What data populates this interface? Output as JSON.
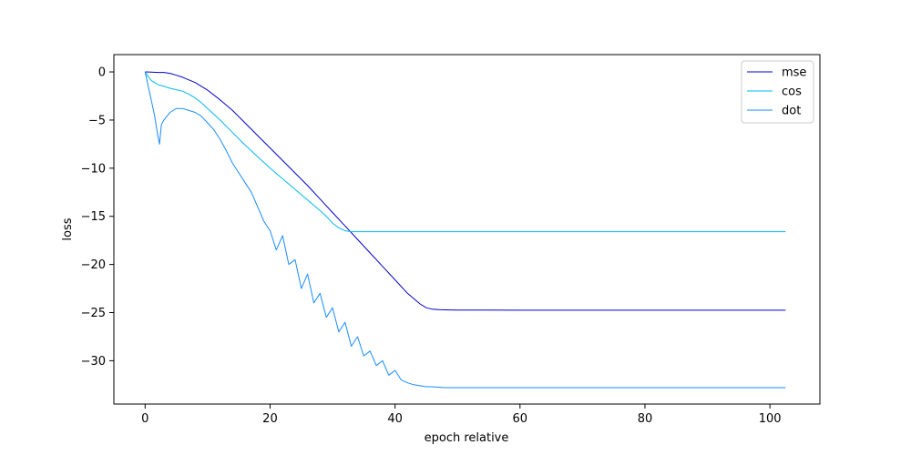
{
  "chart_data": {
    "type": "line",
    "title": "",
    "xlabel": "epoch relative",
    "ylabel": "loss",
    "xlim": [
      -5,
      108
    ],
    "ylim": [
      -34.5,
      1.8
    ],
    "xticks": [
      0,
      20,
      40,
      60,
      80,
      100
    ],
    "xtick_labels": [
      "0",
      "20",
      "40",
      "60",
      "80",
      "100"
    ],
    "yticks": [
      0,
      -5,
      -10,
      -15,
      -20,
      -25,
      -30
    ],
    "ytick_labels": [
      "0",
      "−5",
      "−10",
      "−15",
      "−20",
      "−25",
      "−30"
    ],
    "grid": false,
    "legend_position": "top-right",
    "series": [
      {
        "name": "mse",
        "color": "#0000cc",
        "x": [
          0,
          1,
          2,
          3,
          4,
          5,
          6,
          8,
          10,
          12,
          14,
          16,
          18,
          20,
          22,
          24,
          26,
          28,
          30,
          32,
          34,
          36,
          38,
          40,
          42,
          44,
          45,
          46,
          47,
          48,
          50,
          55,
          60,
          70,
          80,
          90,
          100,
          102.5
        ],
        "y": [
          0.0,
          -0.02,
          -0.05,
          -0.05,
          -0.15,
          -0.35,
          -0.55,
          -1.1,
          -1.9,
          -2.9,
          -4.0,
          -5.3,
          -6.6,
          -7.9,
          -9.2,
          -10.5,
          -11.8,
          -13.2,
          -14.6,
          -16.0,
          -17.4,
          -18.8,
          -20.2,
          -21.6,
          -23.0,
          -24.1,
          -24.5,
          -24.65,
          -24.7,
          -24.72,
          -24.74,
          -24.74,
          -24.75,
          -24.75,
          -24.75,
          -24.75,
          -24.75,
          -24.75
        ]
      },
      {
        "name": "cos",
        "color": "#00b8ee",
        "x": [
          0,
          0.5,
          1,
          2,
          3,
          4,
          5,
          6,
          7,
          8,
          9,
          10,
          12,
          14,
          16,
          18,
          20,
          22,
          24,
          26,
          28,
          29,
          30,
          31,
          32,
          33,
          34,
          36,
          38,
          40,
          45,
          50,
          55,
          60,
          65,
          70,
          75,
          80,
          85,
          90,
          95,
          100,
          102.5
        ],
        "y": [
          0.0,
          -0.5,
          -0.9,
          -1.3,
          -1.5,
          -1.7,
          -1.85,
          -2.0,
          -2.3,
          -2.7,
          -3.2,
          -3.8,
          -5.0,
          -6.3,
          -7.6,
          -8.8,
          -10.0,
          -11.1,
          -12.2,
          -13.3,
          -14.4,
          -15.0,
          -15.7,
          -16.2,
          -16.5,
          -16.6,
          -16.6,
          -16.6,
          -16.6,
          -16.6,
          -16.6,
          -16.6,
          -16.6,
          -16.6,
          -16.6,
          -16.6,
          -16.6,
          -16.6,
          -16.6,
          -16.6,
          -16.6,
          -16.6,
          -16.6
        ]
      },
      {
        "name": "dot",
        "color": "#1a8cff",
        "x": [
          0,
          0.5,
          1,
          1.5,
          2,
          2.3,
          2.6,
          3,
          4,
          5,
          6,
          7,
          8,
          9,
          10,
          11,
          12,
          13,
          14,
          15,
          16,
          17,
          18,
          19,
          20,
          21,
          22,
          23,
          24,
          25,
          26,
          27,
          28,
          29,
          30,
          31,
          32,
          33,
          34,
          35,
          36,
          37,
          38,
          39,
          40,
          41,
          42,
          43,
          44,
          45,
          46,
          48,
          50,
          52,
          54,
          56,
          58,
          60,
          62,
          64,
          66,
          68,
          70,
          72,
          74,
          76,
          78,
          80,
          82,
          84,
          86,
          88,
          90,
          92,
          94,
          96,
          98,
          100,
          102.5
        ],
        "y": [
          0.0,
          -1.5,
          -3.0,
          -4.5,
          -6.5,
          -7.5,
          -5.5,
          -5.0,
          -4.2,
          -3.8,
          -3.8,
          -4.0,
          -4.2,
          -4.6,
          -5.3,
          -6.0,
          -7.0,
          -8.2,
          -9.5,
          -10.5,
          -11.5,
          -12.5,
          -14.0,
          -15.5,
          -16.5,
          -18.5,
          -17.0,
          -20.0,
          -19.5,
          -22.5,
          -21.0,
          -24.0,
          -23.0,
          -25.5,
          -24.5,
          -27.0,
          -26.0,
          -28.5,
          -27.5,
          -29.5,
          -29.0,
          -30.5,
          -30.0,
          -31.5,
          -31.0,
          -32.0,
          -32.3,
          -32.5,
          -32.6,
          -32.7,
          -32.7,
          -32.8,
          -32.8,
          -32.8,
          -32.8,
          -32.8,
          -32.8,
          -32.8,
          -32.8,
          -32.8,
          -32.8,
          -32.8,
          -32.8,
          -32.8,
          -32.8,
          -32.8,
          -32.8,
          -32.8,
          -32.8,
          -32.8,
          -32.8,
          -32.8,
          -32.8,
          -32.8,
          -32.8,
          -32.8,
          -32.8,
          -32.8,
          -32.8
        ]
      }
    ]
  }
}
